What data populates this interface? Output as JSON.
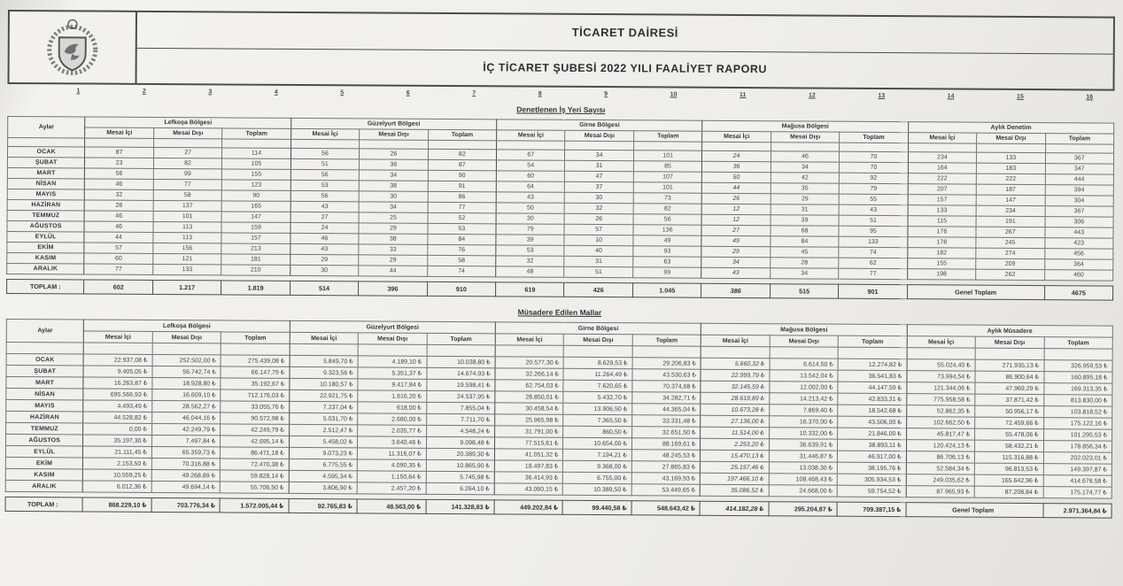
{
  "header": {
    "department": "TİCARET DAİRESİ",
    "report_title": "İÇ TİCARET ŞUBESİ 2022 YILI FAALİYET RAPORU"
  },
  "ruler_numbers": [
    "1",
    "2",
    "3",
    "4",
    "5",
    "6",
    "7",
    "8",
    "9",
    "10",
    "11",
    "12",
    "13",
    "14",
    "15",
    "16"
  ],
  "labels": {
    "aylar": "Aylar",
    "subheaders": [
      "Mesai İçi",
      "Mesai Dışı",
      "Toplam"
    ],
    "toplam_row": "TOPLAM :",
    "genel_toplam": "Genel Toplam"
  },
  "months": [
    "OCAK",
    "ŞUBAT",
    "MART",
    "NİSAN",
    "MAYIS",
    "HAZİRAN",
    "TEMMUZ",
    "AĞUSTOS",
    "EYLÜL",
    "EKİM",
    "KASIM",
    "ARALIK"
  ],
  "table1": {
    "section_title": "Denetlenen İş Yeri Sayısı",
    "groups": [
      "Lefkoşa Bölgesi",
      "Güzelyurt Bölgesi",
      "Girne Bölgesi",
      "Mağusa Bölgesi",
      "Aylık Denetim"
    ],
    "rows": [
      [
        "87",
        "27",
        "114",
        "56",
        "26",
        "82",
        "67",
        "34",
        "101",
        "24",
        "46",
        "70",
        "234",
        "133",
        "367"
      ],
      [
        "23",
        "82",
        "105",
        "51",
        "36",
        "87",
        "54",
        "31",
        "85",
        "36",
        "34",
        "70",
        "164",
        "183",
        "347"
      ],
      [
        "56",
        "99",
        "155",
        "56",
        "34",
        "90",
        "60",
        "47",
        "107",
        "50",
        "42",
        "92",
        "222",
        "222",
        "444"
      ],
      [
        "46",
        "77",
        "123",
        "53",
        "38",
        "91",
        "64",
        "37",
        "101",
        "44",
        "35",
        "79",
        "207",
        "187",
        "394"
      ],
      [
        "32",
        "58",
        "90",
        "56",
        "30",
        "86",
        "43",
        "30",
        "73",
        "26",
        "29",
        "55",
        "157",
        "147",
        "304"
      ],
      [
        "28",
        "137",
        "165",
        "43",
        "34",
        "77",
        "50",
        "32",
        "82",
        "12",
        "31",
        "43",
        "133",
        "234",
        "367"
      ],
      [
        "46",
        "101",
        "147",
        "27",
        "25",
        "52",
        "30",
        "26",
        "56",
        "12",
        "39",
        "51",
        "115",
        "191",
        "306"
      ],
      [
        "46",
        "113",
        "159",
        "24",
        "29",
        "53",
        "79",
        "57",
        "136",
        "27",
        "68",
        "95",
        "176",
        "267",
        "443"
      ],
      [
        "44",
        "113",
        "157",
        "46",
        "38",
        "84",
        "39",
        "10",
        "49",
        "49",
        "84",
        "133",
        "178",
        "245",
        "423"
      ],
      [
        "57",
        "156",
        "213",
        "43",
        "33",
        "76",
        "53",
        "40",
        "93",
        "29",
        "45",
        "74",
        "182",
        "274",
        "456"
      ],
      [
        "60",
        "121",
        "181",
        "29",
        "29",
        "58",
        "32",
        "31",
        "63",
        "34",
        "28",
        "62",
        "155",
        "209",
        "364"
      ],
      [
        "77",
        "133",
        "210",
        "30",
        "44",
        "74",
        "48",
        "51",
        "99",
        "43",
        "34",
        "77",
        "198",
        "262",
        "460"
      ]
    ],
    "totals": [
      "602",
      "1.217",
      "1.819",
      "514",
      "396",
      "910",
      "619",
      "426",
      "1.045",
      "386",
      "515",
      "901"
    ],
    "genel_toplam_value": "4675"
  },
  "table2": {
    "section_title": "Müsadere Edilen Mallar",
    "groups": [
      "Lefkoşa Bölgesi",
      "Güzelyurt Bölgesi",
      "Girne Bölgesi",
      "Mağusa Bölgesi",
      "Aylık Müsadere"
    ],
    "rows": [
      [
        "22.937,08 ₺",
        "252.502,00 ₺",
        "275.439,08 ₺",
        "5.849,70 ₺",
        "4.189,10 ₺",
        "10.038,80 ₺",
        "20.577,30 ₺",
        "8.629,53 ₺",
        "29.206,83 ₺",
        "5.660,32 ₺",
        "6.614,50 ₺",
        "12.274,82 ₺",
        "55.024,40 ₺",
        "271.935,13 ₺",
        "326.959,53 ₺"
      ],
      [
        "9.405,05 ₺",
        "56.742,74 ₺",
        "66.147,79 ₺",
        "9.323,56 ₺",
        "5.351,37 ₺",
        "14.674,93 ₺",
        "32.266,14 ₺",
        "11.264,49 ₺",
        "43.530,63 ₺",
        "22.999,79 ₺",
        "13.542,04 ₺",
        "36.541,83 ₺",
        "73.994,54 ₺",
        "86.900,64 ₺",
        "160.895,18 ₺"
      ],
      [
        "16.263,87 ₺",
        "18.928,80 ₺",
        "35.192,67 ₺",
        "10.180,57 ₺",
        "9.417,84 ₺",
        "19.598,41 ₺",
        "62.754,03 ₺",
        "7.620,65 ₺",
        "70.374,68 ₺",
        "32.145,59 ₺",
        "12.002,00 ₺",
        "44.147,59 ₺",
        "121.344,06 ₺",
        "47.969,29 ₺",
        "169.313,35 ₺"
      ],
      [
        "695.566,93 ₺",
        "16.609,10 ₺",
        "712.176,03 ₺",
        "22.921,75 ₺",
        "1.616,20 ₺",
        "24.537,95 ₺",
        "28.850,01 ₺",
        "5.432,70 ₺",
        "34.282,71 ₺",
        "28.619,89 ₺",
        "14.213,42 ₺",
        "42.833,31 ₺",
        "775.958,58 ₺",
        "37.871,42 ₺",
        "813.830,00 ₺"
      ],
      [
        "4.493,49 ₺",
        "28.562,27 ₺",
        "33.055,76 ₺",
        "7.237,04 ₺",
        "618,00 ₺",
        "7.855,04 ₺",
        "30.458,54 ₺",
        "13.906,50 ₺",
        "44.365,04 ₺",
        "10.673,28 ₺",
        "7.869,40 ₺",
        "18.542,68 ₺",
        "52.862,35 ₺",
        "50.956,17 ₺",
        "103.818,52 ₺"
      ],
      [
        "44.528,82 ₺",
        "46.044,16 ₺",
        "90.572,98 ₺",
        "5.031,70 ₺",
        "2.680,00 ₺",
        "7.711,70 ₺",
        "25.965,98 ₺",
        "7.365,50 ₺",
        "33.331,48 ₺",
        "27.136,00 ₺",
        "16.370,00 ₺",
        "43.506,00 ₺",
        "102.662,50 ₺",
        "72.459,66 ₺",
        "175.122,16 ₺"
      ],
      [
        "0,00 ₺",
        "42.249,79 ₺",
        "42.249,79 ₺",
        "2.512,47 ₺",
        "2.035,77 ₺",
        "4.548,24 ₺",
        "31.791,00 ₺",
        "860,50 ₺",
        "32.651,50 ₺",
        "11.514,00 ₺",
        "10.332,00 ₺",
        "21.846,00 ₺",
        "45.817,47 ₺",
        "55.478,06 ₺",
        "101.295,53 ₺"
      ],
      [
        "35.197,30 ₺",
        "7.497,84 ₺",
        "42.695,14 ₺",
        "5.458,02 ₺",
        "3.640,46 ₺",
        "9.098,48 ₺",
        "77.515,61 ₺",
        "10.654,00 ₺",
        "88.169,61 ₺",
        "2.253,20 ₺",
        "36.639,91 ₺",
        "38.893,11 ₺",
        "120.424,13 ₺",
        "58.432,21 ₺",
        "178.856,34 ₺"
      ],
      [
        "21.111,45 ₺",
        "65.359,73 ₺",
        "86.471,18 ₺",
        "9.073,23 ₺",
        "11.316,07 ₺",
        "20.389,30 ₺",
        "41.051,32 ₺",
        "7.194,21 ₺",
        "48.245,53 ₺",
        "15.470,13 ₺",
        "31.446,87 ₺",
        "46.917,00 ₺",
        "86.706,13 ₺",
        "115.316,88 ₺",
        "202.023,01 ₺"
      ],
      [
        "2.153,50 ₺",
        "70.316,88 ₺",
        "72.470,38 ₺",
        "6.775,55 ₺",
        "4.090,35 ₺",
        "10.865,90 ₺",
        "18.497,83 ₺",
        "9.368,00 ₺",
        "27.865,83 ₺",
        "25.157,46 ₺",
        "13.038,30 ₺",
        "38.195,76 ₺",
        "52.584,34 ₺",
        "96.813,53 ₺",
        "149.397,87 ₺"
      ],
      [
        "10.559,25 ₺",
        "49.268,89 ₺",
        "59.828,14 ₺",
        "4.595,34 ₺",
        "1.150,64 ₺",
        "5.745,98 ₺",
        "36.414,93 ₺",
        "6.755,00 ₺",
        "43.169,93 ₺",
        "197.466,10 ₺",
        "108.468,43 ₺",
        "305.934,53 ₺",
        "249.035,62 ₺",
        "165.642,96 ₺",
        "414.678,58 ₺"
      ],
      [
        "6.012,36 ₺",
        "49.694,14 ₺",
        "55.706,50 ₺",
        "3.806,90 ₺",
        "2.457,20 ₺",
        "6.264,10 ₺",
        "43.060,15 ₺",
        "10.389,50 ₺",
        "53.449,65 ₺",
        "35.086,52 ₺",
        "24.668,00 ₺",
        "59.754,52 ₺",
        "87.965,93 ₺",
        "87.208,84 ₺",
        "175.174,77 ₺"
      ]
    ],
    "totals": [
      "868.229,10 ₺",
      "703.776,34 ₺",
      "1.572.005,44 ₺",
      "92.765,83 ₺",
      "48.563,00 ₺",
      "141.328,83 ₺",
      "449.202,84 ₺",
      "99.440,58 ₺",
      "548.643,42 ₺",
      "414.182,28 ₺",
      "295.204,87 ₺",
      "709.387,15 ₺"
    ],
    "genel_toplam_value": "2.971.364,84 ₺"
  }
}
